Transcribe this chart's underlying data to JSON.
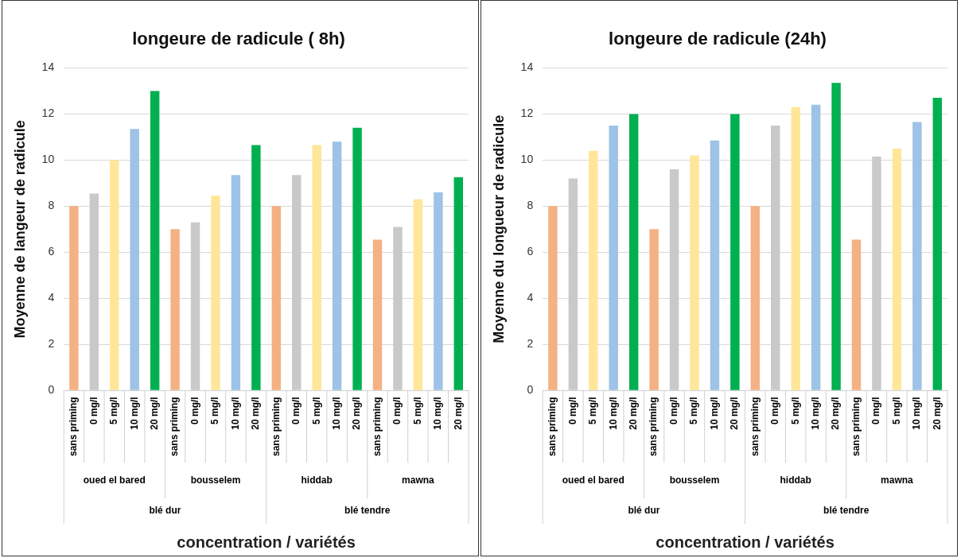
{
  "chart_data": [
    {
      "type": "bar",
      "title": "longeure de radicule ( 8h)",
      "xlabel": "concentration / variétés",
      "ylabel": "Moyenne de langeur de radicule",
      "categories": [
        "sans priming",
        "0 mg/l",
        "5 mg/l",
        "10 mg/l",
        "20 mg/l",
        "sans priming",
        "0 mg/l",
        "5 mg/l",
        "10 mg/l",
        "20 mg/l",
        "sans priming",
        "0 mg/l",
        "5 mg/l",
        "10 mg/l",
        "20 mg/l",
        "sans priming",
        "0 mg/l",
        "5 mg/l",
        "10 mg/l",
        "20 mg/l"
      ],
      "values": [
        8.0,
        8.55,
        10.0,
        11.35,
        13.0,
        7.0,
        7.3,
        8.45,
        9.35,
        10.65,
        8.0,
        9.35,
        10.65,
        10.8,
        11.4,
        6.55,
        7.1,
        8.3,
        8.6,
        9.25
      ],
      "colors": [
        "#f4b183",
        "#c9c9c9",
        "#ffe699",
        "#9dc3e6",
        "#00b050",
        "#f4b183",
        "#c9c9c9",
        "#ffe699",
        "#9dc3e6",
        "#00b050",
        "#f4b183",
        "#c9c9c9",
        "#ffe699",
        "#9dc3e6",
        "#00b050",
        "#f4b183",
        "#c9c9c9",
        "#ffe699",
        "#9dc3e6",
        "#00b050"
      ],
      "ylim": [
        0,
        14
      ],
      "yticks": [
        0,
        2,
        4,
        6,
        8,
        10,
        12,
        14
      ],
      "grid": "y",
      "annotations": [
        "oued el bared",
        "bousselem",
        "hiddab",
        "mawna",
        "blé dur",
        "blé tendre"
      ]
    },
    {
      "type": "bar",
      "title": "longeure de radicule (24h)",
      "xlabel": "concentration / variétés",
      "ylabel": "Moyenne du longueur de radicule",
      "categories": [
        "sans priming",
        "0 mg/l",
        "5 mg/l",
        "10 mg/l",
        "20 mg/l",
        "sans priming",
        "0 mg/l",
        "5 mg/l",
        "10 mg/l",
        "20 mg/l",
        "sans priming",
        "0 mg/l",
        "5 mg/l",
        "10 mg/l",
        "20 mg/l",
        "sans priming",
        "0 mg/l",
        "5 mg/l",
        "10 mg/l",
        "20 mg/l"
      ],
      "values": [
        8.0,
        9.2,
        10.4,
        11.5,
        12.0,
        7.0,
        9.6,
        10.2,
        10.85,
        12.0,
        8.0,
        11.5,
        12.3,
        12.4,
        13.35,
        6.55,
        10.15,
        10.5,
        11.65,
        12.7
      ],
      "colors": [
        "#f4b183",
        "#c9c9c9",
        "#ffe699",
        "#9dc3e6",
        "#00b050",
        "#f4b183",
        "#c9c9c9",
        "#ffe699",
        "#9dc3e6",
        "#00b050",
        "#f4b183",
        "#c9c9c9",
        "#ffe699",
        "#9dc3e6",
        "#00b050",
        "#f4b183",
        "#c9c9c9",
        "#ffe699",
        "#9dc3e6",
        "#00b050"
      ],
      "ylim": [
        0,
        14
      ],
      "yticks": [
        0,
        2,
        4,
        6,
        8,
        10,
        12,
        14
      ],
      "grid": "y",
      "annotations": [
        "oued el bared",
        "bousselem",
        "hiddab",
        "mawna",
        "blé dur",
        "blé tendre"
      ]
    }
  ]
}
